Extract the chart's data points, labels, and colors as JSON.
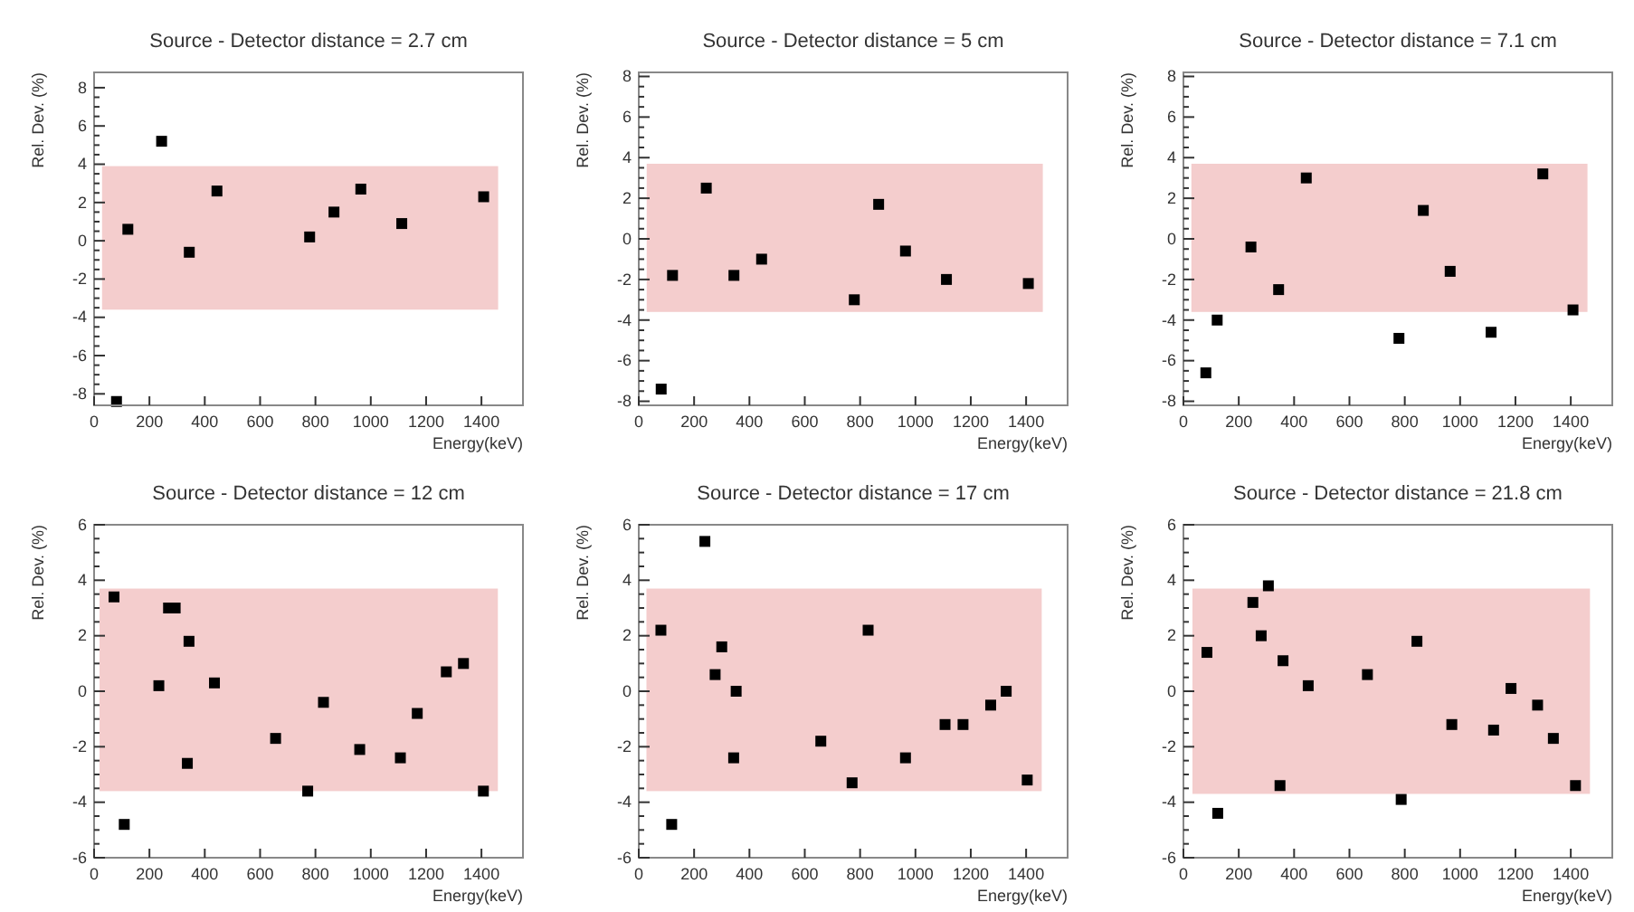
{
  "chart_data": [
    {
      "type": "scatter",
      "title": "Source - Detector distance = 2.7 cm",
      "xlabel": "Energy(keV)",
      "ylabel": "Rel. Dev. (%)",
      "xlim": [
        0,
        1550
      ],
      "ylim": [
        -8.6,
        8.8
      ],
      "xticks": [
        0,
        200,
        400,
        600,
        800,
        1000,
        1200,
        1400
      ],
      "yticks": [
        -8,
        -6,
        -4,
        -2,
        0,
        2,
        4,
        6,
        8
      ],
      "marker": "square",
      "bands": [
        {
          "axis": "y",
          "from": -3.6,
          "to": 3.9,
          "color": "#f2c4c4"
        }
      ],
      "series": [
        {
          "color": "#000000",
          "x": [
            81,
            122,
            244,
            344,
            444,
            779,
            867,
            964,
            1112,
            1408
          ],
          "values": [
            -8.4,
            0.6,
            5.2,
            -0.6,
            2.6,
            0.2,
            1.5,
            2.7,
            0.9,
            2.3
          ]
        }
      ]
    },
    {
      "type": "scatter",
      "title": "Source - Detector distance = 5 cm",
      "xlabel": "Energy(keV)",
      "ylabel": "Rel. Dev. (%)",
      "xlim": [
        0,
        1550
      ],
      "ylim": [
        -8.2,
        8.2
      ],
      "xticks": [
        0,
        200,
        400,
        600,
        800,
        1000,
        1200,
        1400
      ],
      "yticks": [
        -8,
        -6,
        -4,
        -2,
        0,
        2,
        4,
        6,
        8
      ],
      "marker": "square",
      "bands": [
        {
          "axis": "y",
          "from": -3.6,
          "to": 3.7,
          "color": "#f2c4c4"
        }
      ],
      "series": [
        {
          "color": "#000000",
          "x": [
            81,
            122,
            244,
            344,
            444,
            779,
            867,
            964,
            1112,
            1408
          ],
          "values": [
            -7.4,
            -1.8,
            2.5,
            -1.8,
            -1.0,
            -3.0,
            1.7,
            -0.6,
            -2.0,
            -2.2
          ]
        }
      ]
    },
    {
      "type": "scatter",
      "title": "Source - Detector distance = 7.1 cm",
      "xlabel": "Energy(keV)",
      "ylabel": "Rel. Dev. (%)",
      "xlim": [
        0,
        1550
      ],
      "ylim": [
        -8.2,
        8.2
      ],
      "xticks": [
        0,
        200,
        400,
        600,
        800,
        1000,
        1200,
        1400
      ],
      "yticks": [
        -8,
        -6,
        -4,
        -2,
        0,
        2,
        4,
        6,
        8
      ],
      "marker": "square",
      "bands": [
        {
          "axis": "y",
          "from": -3.6,
          "to": 3.7,
          "color": "#f2c4c4"
        }
      ],
      "series": [
        {
          "color": "#000000",
          "x": [
            81,
            122,
            244,
            344,
            444,
            779,
            867,
            964,
            1112,
            1299,
            1408
          ],
          "values": [
            -6.6,
            -4.0,
            -0.4,
            -2.5,
            3.0,
            -4.9,
            1.4,
            -1.6,
            -4.6,
            3.2,
            -3.5
          ]
        }
      ]
    },
    {
      "type": "scatter",
      "title": "Source - Detector distance = 12 cm",
      "xlabel": "Energy(keV)",
      "ylabel": "Rel. Dev. (%)",
      "xlim": [
        0,
        1550
      ],
      "ylim": [
        -6,
        6
      ],
      "xticks": [
        0,
        200,
        400,
        600,
        800,
        1000,
        1200,
        1400
      ],
      "yticks": [
        -6,
        -4,
        -2,
        0,
        2,
        4,
        6
      ],
      "marker": "square",
      "bands": [
        {
          "axis": "y",
          "from": -3.6,
          "to": 3.7,
          "color": "#f2c4c4"
        }
      ],
      "series": [
        {
          "color": "#000000",
          "x": [
            72,
            109,
            234,
            269,
            293,
            343,
            337,
            435,
            656,
            772,
            829,
            960,
            1107,
            1168,
            1273,
            1335,
            1407
          ],
          "values": [
            3.4,
            -4.8,
            0.2,
            3.0,
            3.0,
            1.8,
            -2.6,
            0.3,
            -1.7,
            -3.6,
            -0.4,
            -2.1,
            -2.4,
            -0.8,
            0.7,
            1.0,
            -3.6
          ]
        }
      ]
    },
    {
      "type": "scatter",
      "title": "Source - Detector distance = 17 cm",
      "xlabel": "Energy(keV)",
      "ylabel": "Rel. Dev. (%)",
      "xlim": [
        0,
        1550
      ],
      "ylim": [
        -6,
        6
      ],
      "xticks": [
        0,
        200,
        400,
        600,
        800,
        1000,
        1200,
        1400
      ],
      "yticks": [
        -6,
        -4,
        -2,
        0,
        2,
        4,
        6
      ],
      "marker": "square",
      "bands": [
        {
          "axis": "y",
          "from": -3.6,
          "to": 3.7,
          "color": "#f2c4c4"
        }
      ],
      "series": [
        {
          "color": "#000000",
          "x": [
            80,
            119,
            239,
            276,
            300,
            343,
            352,
            658,
            771,
            829,
            964,
            1107,
            1172,
            1272,
            1328,
            1404
          ],
          "values": [
            2.2,
            -4.8,
            5.4,
            0.6,
            1.6,
            -2.4,
            0.0,
            -1.8,
            -3.3,
            2.2,
            -2.4,
            -1.2,
            -1.2,
            -0.5,
            0.0,
            -3.2
          ]
        }
      ]
    },
    {
      "type": "scatter",
      "title": "Source - Detector distance = 21.8 cm",
      "xlabel": "Energy(keV)",
      "ylabel": "Rel. Dev. (%)",
      "xlim": [
        0,
        1550
      ],
      "ylim": [
        -6,
        6
      ],
      "xticks": [
        0,
        200,
        400,
        600,
        800,
        1000,
        1200,
        1400
      ],
      "yticks": [
        -6,
        -4,
        -2,
        0,
        2,
        4,
        6
      ],
      "marker": "square",
      "bands": [
        {
          "axis": "y",
          "from": -3.7,
          "to": 3.7,
          "color": "#f2c4c4"
        }
      ],
      "series": [
        {
          "color": "#000000",
          "x": [
            85,
            124,
            251,
            281,
            307,
            349,
            360,
            451,
            665,
            787,
            844,
            970,
            1121,
            1184,
            1280,
            1337,
            1417
          ],
          "values": [
            1.4,
            -4.4,
            3.2,
            2.0,
            3.8,
            -3.4,
            1.1,
            0.2,
            0.6,
            -3.9,
            1.8,
            -1.2,
            -1.4,
            0.1,
            -0.5,
            -1.7,
            -3.4
          ]
        }
      ]
    }
  ]
}
